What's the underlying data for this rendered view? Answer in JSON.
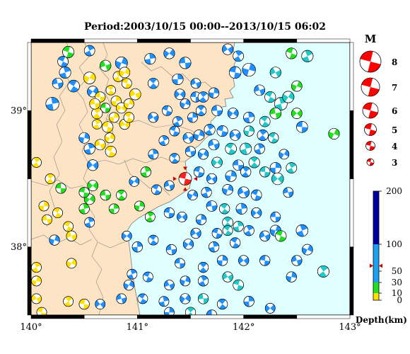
{
  "title": "Period:2003/10/15 00:00--2013/10/15 06:02",
  "map": {
    "land_color": "#fce4c4",
    "sea_color": "#e0ffff",
    "lon_ticks": [
      {
        "value": 140,
        "label": "140°"
      },
      {
        "value": 141,
        "label": "141°"
      },
      {
        "value": 142,
        "label": "142°"
      },
      {
        "value": 143,
        "label": "143°"
      }
    ],
    "lat_ticks": [
      {
        "value": 39,
        "label": "39°"
      },
      {
        "value": 38,
        "label": "38°"
      }
    ],
    "lon_range": [
      140,
      143
    ],
    "lat_range": [
      37.5,
      39.5
    ],
    "highlight_event": {
      "lon": 141.45,
      "lat": 38.5,
      "magnitude": 4.5,
      "depth_km": 60,
      "color": "#ff2020"
    }
  },
  "magnitude_legend": {
    "title": "M",
    "items": [
      {
        "label": "8",
        "m": 8
      },
      {
        "label": "7",
        "m": 7
      },
      {
        "label": "6",
        "m": 6
      },
      {
        "label": "5",
        "m": 5
      },
      {
        "label": "4",
        "m": 4
      },
      {
        "label": "3",
        "m": 3
      }
    ],
    "color": "#ff0000"
  },
  "depth_legend": {
    "title": "Depth(km)",
    "ticks": [
      {
        "label": "200",
        "value": 200
      },
      {
        "label": "100",
        "value": 100
      },
      {
        "label": "50",
        "value": 50
      },
      {
        "label": "30",
        "value": 30
      },
      {
        "label": "10",
        "value": 10
      },
      {
        "label": "0",
        "value": 0
      }
    ],
    "bands": [
      {
        "from": 0,
        "to": 10,
        "color": "#ffe000"
      },
      {
        "from": 10,
        "to": 30,
        "color": "#20e020"
      },
      {
        "from": 30,
        "to": 100,
        "color": "#1ea0f0"
      },
      {
        "from": 100,
        "to": 200,
        "color": "#0000a0"
      }
    ],
    "marker_depth": 60
  },
  "depth_colors": {
    "yellow": "#ffe000",
    "green": "#20e020",
    "cyan": "#20c8c8",
    "blue": "#1e90ff",
    "navy": "#0000b0"
  },
  "events": [
    {
      "lon": 140.35,
      "lat": 39.43,
      "m": 3.8,
      "c": "green"
    },
    {
      "lon": 140.55,
      "lat": 39.44,
      "m": 3.5,
      "c": "blue"
    },
    {
      "lon": 140.85,
      "lat": 39.35,
      "m": 4.0,
      "c": "blue"
    },
    {
      "lon": 140.7,
      "lat": 39.33,
      "m": 3.6,
      "c": "green"
    },
    {
      "lon": 140.3,
      "lat": 39.36,
      "m": 3.5,
      "c": "blue"
    },
    {
      "lon": 140.32,
      "lat": 39.28,
      "m": 3.8,
      "c": "blue"
    },
    {
      "lon": 140.55,
      "lat": 39.24,
      "m": 3.9,
      "c": "yellow"
    },
    {
      "lon": 140.25,
      "lat": 39.2,
      "m": 3.5,
      "c": "blue"
    },
    {
      "lon": 140.4,
      "lat": 39.18,
      "m": 3.9,
      "c": "blue"
    },
    {
      "lon": 140.2,
      "lat": 39.05,
      "m": 4.3,
      "c": "blue"
    },
    {
      "lon": 140.58,
      "lat": 39.14,
      "m": 3.6,
      "c": "blue"
    },
    {
      "lon": 140.65,
      "lat": 39.1,
      "m": 3.4,
      "c": "yellow"
    },
    {
      "lon": 140.75,
      "lat": 39.15,
      "m": 3.2,
      "c": "yellow"
    },
    {
      "lon": 140.8,
      "lat": 39.07,
      "m": 3.4,
      "c": "yellow"
    },
    {
      "lon": 140.85,
      "lat": 39.02,
      "m": 3.5,
      "c": "yellow"
    },
    {
      "lon": 140.7,
      "lat": 39.02,
      "m": 3.2,
      "c": "green"
    },
    {
      "lon": 140.62,
      "lat": 38.98,
      "m": 3.6,
      "c": "yellow"
    },
    {
      "lon": 140.78,
      "lat": 38.95,
      "m": 3.3,
      "c": "yellow"
    },
    {
      "lon": 140.88,
      "lat": 38.9,
      "m": 3.4,
      "c": "yellow"
    },
    {
      "lon": 140.72,
      "lat": 38.88,
      "m": 3.6,
      "c": "yellow"
    },
    {
      "lon": 140.62,
      "lat": 38.9,
      "m": 3.2,
      "c": "yellow"
    },
    {
      "lon": 140.92,
      "lat": 39.05,
      "m": 3.3,
      "c": "yellow"
    },
    {
      "lon": 140.98,
      "lat": 39.12,
      "m": 3.7,
      "c": "yellow"
    },
    {
      "lon": 140.9,
      "lat": 39.2,
      "m": 3.3,
      "c": "yellow"
    },
    {
      "lon": 140.82,
      "lat": 39.25,
      "m": 3.4,
      "c": "yellow"
    },
    {
      "lon": 140.74,
      "lat": 38.8,
      "m": 3.3,
      "c": "yellow"
    },
    {
      "lon": 140.65,
      "lat": 38.75,
      "m": 3.5,
      "c": "yellow"
    },
    {
      "lon": 140.75,
      "lat": 38.7,
      "m": 3.6,
      "c": "yellow"
    },
    {
      "lon": 140.55,
      "lat": 38.72,
      "m": 3.6,
      "c": "blue"
    },
    {
      "lon": 140.88,
      "lat": 39.28,
      "m": 3.5,
      "c": "yellow"
    },
    {
      "lon": 140.6,
      "lat": 39.05,
      "m": 3.5,
      "c": "yellow"
    },
    {
      "lon": 140.92,
      "lat": 38.95,
      "m": 3.4,
      "c": "yellow"
    },
    {
      "lon": 141.12,
      "lat": 39.38,
      "m": 3.6,
      "c": "blue"
    },
    {
      "lon": 141.3,
      "lat": 39.42,
      "m": 3.6,
      "c": "blue"
    },
    {
      "lon": 141.45,
      "lat": 39.35,
      "m": 3.8,
      "c": "blue"
    },
    {
      "lon": 141.15,
      "lat": 39.2,
      "m": 3.5,
      "c": "blue"
    },
    {
      "lon": 141.38,
      "lat": 39.23,
      "m": 3.6,
      "c": "blue"
    },
    {
      "lon": 141.4,
      "lat": 39.12,
      "m": 3.5,
      "c": "blue"
    },
    {
      "lon": 141.55,
      "lat": 39.1,
      "m": 3.4,
      "c": "blue"
    },
    {
      "lon": 141.62,
      "lat": 39.1,
      "m": 3.5,
      "c": "blue"
    },
    {
      "lon": 141.72,
      "lat": 39.13,
      "m": 3.4,
      "c": "blue"
    },
    {
      "lon": 141.85,
      "lat": 39.45,
      "m": 3.6,
      "c": "blue"
    },
    {
      "lon": 141.92,
      "lat": 39.28,
      "m": 3.9,
      "c": "blue"
    },
    {
      "lon": 141.95,
      "lat": 39.4,
      "m": 3.5,
      "c": "blue"
    },
    {
      "lon": 142.05,
      "lat": 39.3,
      "m": 4.3,
      "c": "blue"
    },
    {
      "lon": 142.3,
      "lat": 39.28,
      "m": 3.6,
      "c": "cyan"
    },
    {
      "lon": 142.45,
      "lat": 39.42,
      "m": 3.6,
      "c": "green"
    },
    {
      "lon": 142.6,
      "lat": 39.4,
      "m": 3.8,
      "c": "cyan"
    },
    {
      "lon": 142.5,
      "lat": 39.18,
      "m": 3.5,
      "c": "green"
    },
    {
      "lon": 142.15,
      "lat": 39.15,
      "m": 3.5,
      "c": "blue"
    },
    {
      "lon": 142.25,
      "lat": 39.1,
      "m": 3.6,
      "c": "cyan"
    },
    {
      "lon": 142.35,
      "lat": 39.05,
      "m": 4.2,
      "c": "cyan"
    },
    {
      "lon": 142.42,
      "lat": 39.1,
      "m": 3.8,
      "c": "cyan"
    },
    {
      "lon": 142.3,
      "lat": 38.98,
      "m": 3.7,
      "c": "green"
    },
    {
      "lon": 142.2,
      "lat": 38.92,
      "m": 3.5,
      "c": "cyan"
    },
    {
      "lon": 142.05,
      "lat": 38.95,
      "m": 3.6,
      "c": "blue"
    },
    {
      "lon": 141.9,
      "lat": 38.98,
      "m": 3.5,
      "c": "blue"
    },
    {
      "lon": 141.75,
      "lat": 39.0,
      "m": 3.5,
      "c": "blue"
    },
    {
      "lon": 141.6,
      "lat": 39.0,
      "m": 3.4,
      "c": "blue"
    },
    {
      "lon": 141.52,
      "lat": 38.95,
      "m": 3.3,
      "c": "blue"
    },
    {
      "lon": 142.5,
      "lat": 38.98,
      "m": 3.5,
      "c": "green"
    },
    {
      "lon": 142.55,
      "lat": 38.88,
      "m": 3.7,
      "c": "blue"
    },
    {
      "lon": 142.18,
      "lat": 38.82,
      "m": 3.6,
      "c": "blue"
    },
    {
      "lon": 142.05,
      "lat": 38.85,
      "m": 3.4,
      "c": "cyan"
    },
    {
      "lon": 141.92,
      "lat": 38.82,
      "m": 3.5,
      "c": "blue"
    },
    {
      "lon": 141.8,
      "lat": 38.85,
      "m": 3.6,
      "c": "blue"
    },
    {
      "lon": 141.68,
      "lat": 38.86,
      "m": 3.6,
      "c": "blue"
    },
    {
      "lon": 141.58,
      "lat": 38.82,
      "m": 3.5,
      "c": "blue"
    },
    {
      "lon": 141.48,
      "lat": 38.8,
      "m": 3.5,
      "c": "blue"
    },
    {
      "lon": 141.35,
      "lat": 38.85,
      "m": 3.3,
      "c": "blue"
    },
    {
      "lon": 141.25,
      "lat": 38.78,
      "m": 3.3,
      "c": "blue"
    },
    {
      "lon": 142.85,
      "lat": 38.83,
      "m": 3.6,
      "c": "green"
    },
    {
      "lon": 141.72,
      "lat": 38.75,
      "m": 3.5,
      "c": "blue"
    },
    {
      "lon": 141.88,
      "lat": 38.72,
      "m": 3.7,
      "c": "cyan"
    },
    {
      "lon": 142.02,
      "lat": 38.72,
      "m": 3.8,
      "c": "cyan"
    },
    {
      "lon": 141.62,
      "lat": 38.68,
      "m": 3.4,
      "c": "blue"
    },
    {
      "lon": 141.5,
      "lat": 38.7,
      "m": 3.4,
      "c": "blue"
    },
    {
      "lon": 141.35,
      "lat": 38.65,
      "m": 3.3,
      "c": "blue"
    },
    {
      "lon": 141.15,
      "lat": 38.68,
      "m": 3.3,
      "c": "blue"
    },
    {
      "lon": 141.75,
      "lat": 38.62,
      "m": 3.5,
      "c": "cyan"
    },
    {
      "lon": 141.95,
      "lat": 38.6,
      "m": 3.5,
      "c": "blue"
    },
    {
      "lon": 142.1,
      "lat": 38.62,
      "m": 3.6,
      "c": "cyan"
    },
    {
      "lon": 142.3,
      "lat": 38.58,
      "m": 3.6,
      "c": "blue"
    },
    {
      "lon": 142.32,
      "lat": 38.5,
      "m": 3.9,
      "c": "cyan"
    },
    {
      "lon": 142.2,
      "lat": 38.55,
      "m": 3.4,
      "c": "cyan"
    },
    {
      "lon": 142.02,
      "lat": 38.55,
      "m": 3.4,
      "c": "blue"
    },
    {
      "lon": 141.88,
      "lat": 38.52,
      "m": 3.6,
      "c": "blue"
    },
    {
      "lon": 141.7,
      "lat": 38.5,
      "m": 3.4,
      "c": "blue"
    },
    {
      "lon": 141.58,
      "lat": 38.55,
      "m": 3.4,
      "c": "blue"
    },
    {
      "lon": 142.45,
      "lat": 38.58,
      "m": 3.5,
      "c": "cyan"
    },
    {
      "lon": 141.85,
      "lat": 38.42,
      "m": 3.5,
      "c": "blue"
    },
    {
      "lon": 142.0,
      "lat": 38.4,
      "m": 3.7,
      "c": "blue"
    },
    {
      "lon": 142.12,
      "lat": 38.38,
      "m": 3.5,
      "c": "blue"
    },
    {
      "lon": 141.65,
      "lat": 38.4,
      "m": 3.4,
      "c": "blue"
    },
    {
      "lon": 141.52,
      "lat": 38.38,
      "m": 3.3,
      "c": "blue"
    },
    {
      "lon": 141.3,
      "lat": 38.45,
      "m": 3.3,
      "c": "blue"
    },
    {
      "lon": 141.18,
      "lat": 38.42,
      "m": 3.3,
      "c": "blue"
    },
    {
      "lon": 141.08,
      "lat": 38.55,
      "m": 3.4,
      "c": "green"
    },
    {
      "lon": 140.97,
      "lat": 38.48,
      "m": 3.3,
      "c": "blue"
    },
    {
      "lon": 141.7,
      "lat": 38.3,
      "m": 3.5,
      "c": "blue"
    },
    {
      "lon": 141.82,
      "lat": 38.28,
      "m": 3.4,
      "c": "cyan"
    },
    {
      "lon": 141.98,
      "lat": 38.28,
      "m": 3.6,
      "c": "blue"
    },
    {
      "lon": 142.12,
      "lat": 38.25,
      "m": 3.4,
      "c": "blue"
    },
    {
      "lon": 142.3,
      "lat": 38.22,
      "m": 3.3,
      "c": "blue"
    },
    {
      "lon": 141.85,
      "lat": 38.18,
      "m": 3.5,
      "c": "cyan"
    },
    {
      "lon": 141.6,
      "lat": 38.2,
      "m": 3.4,
      "c": "blue"
    },
    {
      "lon": 141.42,
      "lat": 38.22,
      "m": 3.3,
      "c": "blue"
    },
    {
      "lon": 141.3,
      "lat": 38.25,
      "m": 3.4,
      "c": "blue"
    },
    {
      "lon": 141.12,
      "lat": 38.22,
      "m": 3.3,
      "c": "green"
    },
    {
      "lon": 141.02,
      "lat": 38.3,
      "m": 3.3,
      "c": "green"
    },
    {
      "lon": 141.55,
      "lat": 38.1,
      "m": 3.4,
      "c": "blue"
    },
    {
      "lon": 141.75,
      "lat": 38.1,
      "m": 3.3,
      "c": "blue"
    },
    {
      "lon": 142.05,
      "lat": 38.12,
      "m": 3.4,
      "c": "blue"
    },
    {
      "lon": 142.3,
      "lat": 38.12,
      "m": 3.6,
      "c": "blue"
    },
    {
      "lon": 142.2,
      "lat": 38.08,
      "m": 3.4,
      "c": "blue"
    },
    {
      "lon": 142.35,
      "lat": 38.08,
      "m": 3.6,
      "c": "green"
    },
    {
      "lon": 142.55,
      "lat": 38.12,
      "m": 3.9,
      "c": "blue"
    },
    {
      "lon": 142.6,
      "lat": 37.98,
      "m": 3.5,
      "c": "blue"
    },
    {
      "lon": 142.5,
      "lat": 37.9,
      "m": 3.4,
      "c": "blue"
    },
    {
      "lon": 141.92,
      "lat": 38.03,
      "m": 3.4,
      "c": "blue"
    },
    {
      "lon": 141.72,
      "lat": 38.0,
      "m": 3.4,
      "c": "blue"
    },
    {
      "lon": 141.48,
      "lat": 38.02,
      "m": 3.4,
      "c": "blue"
    },
    {
      "lon": 141.32,
      "lat": 37.98,
      "m": 3.4,
      "c": "blue"
    },
    {
      "lon": 141.15,
      "lat": 38.05,
      "m": 3.3,
      "c": "blue"
    },
    {
      "lon": 141.0,
      "lat": 38.0,
      "m": 3.4,
      "c": "blue"
    },
    {
      "lon": 140.9,
      "lat": 38.08,
      "m": 3.3,
      "c": "blue"
    },
    {
      "lon": 141.4,
      "lat": 37.88,
      "m": 3.3,
      "c": "blue"
    },
    {
      "lon": 141.62,
      "lat": 37.85,
      "m": 3.4,
      "c": "blue"
    },
    {
      "lon": 141.8,
      "lat": 37.9,
      "m": 3.4,
      "c": "blue"
    },
    {
      "lon": 142.0,
      "lat": 37.9,
      "m": 3.4,
      "c": "blue"
    },
    {
      "lon": 142.2,
      "lat": 37.9,
      "m": 3.4,
      "c": "blue"
    },
    {
      "lon": 142.75,
      "lat": 37.82,
      "m": 3.8,
      "c": "cyan"
    },
    {
      "lon": 142.45,
      "lat": 37.78,
      "m": 3.4,
      "c": "blue"
    },
    {
      "lon": 141.85,
      "lat": 37.78,
      "m": 3.4,
      "c": "cyan"
    },
    {
      "lon": 141.95,
      "lat": 37.72,
      "m": 3.5,
      "c": "cyan"
    },
    {
      "lon": 141.62,
      "lat": 37.75,
      "m": 3.4,
      "c": "blue"
    },
    {
      "lon": 141.45,
      "lat": 37.75,
      "m": 3.3,
      "c": "blue"
    },
    {
      "lon": 141.3,
      "lat": 37.72,
      "m": 3.3,
      "c": "blue"
    },
    {
      "lon": 141.1,
      "lat": 37.78,
      "m": 3.3,
      "c": "blue"
    },
    {
      "lon": 140.95,
      "lat": 37.8,
      "m": 3.3,
      "c": "blue"
    },
    {
      "lon": 140.92,
      "lat": 37.72,
      "m": 3.4,
      "c": "blue"
    },
    {
      "lon": 140.85,
      "lat": 37.62,
      "m": 3.3,
      "c": "blue"
    },
    {
      "lon": 141.05,
      "lat": 37.62,
      "m": 3.3,
      "c": "blue"
    },
    {
      "lon": 141.25,
      "lat": 37.6,
      "m": 3.3,
      "c": "blue"
    },
    {
      "lon": 141.45,
      "lat": 37.62,
      "m": 3.4,
      "c": "blue"
    },
    {
      "lon": 141.62,
      "lat": 37.62,
      "m": 3.4,
      "c": "cyan"
    },
    {
      "lon": 141.8,
      "lat": 37.58,
      "m": 3.4,
      "c": "blue"
    },
    {
      "lon": 142.05,
      "lat": 37.6,
      "m": 3.4,
      "c": "blue"
    },
    {
      "lon": 142.25,
      "lat": 37.55,
      "m": 3.3,
      "c": "blue"
    },
    {
      "lon": 141.7,
      "lat": 37.5,
      "m": 3.4,
      "c": "blue"
    },
    {
      "lon": 141.5,
      "lat": 37.52,
      "m": 3.4,
      "c": "cyan"
    },
    {
      "lon": 141.3,
      "lat": 37.52,
      "m": 3.3,
      "c": "blue"
    },
    {
      "lon": 140.65,
      "lat": 37.58,
      "m": 3.3,
      "c": "blue"
    },
    {
      "lon": 140.5,
      "lat": 37.58,
      "m": 3.4,
      "c": "yellow"
    },
    {
      "lon": 140.35,
      "lat": 37.6,
      "m": 3.3,
      "c": "yellow"
    },
    {
      "lon": 140.05,
      "lat": 37.75,
      "m": 3.3,
      "c": "yellow"
    },
    {
      "lon": 140.05,
      "lat": 37.62,
      "m": 3.3,
      "c": "yellow"
    },
    {
      "lon": 140.1,
      "lat": 37.52,
      "m": 3.3,
      "c": "yellow"
    },
    {
      "lon": 140.05,
      "lat": 37.85,
      "m": 3.3,
      "c": "yellow"
    },
    {
      "lon": 140.22,
      "lat": 38.05,
      "m": 3.4,
      "c": "blue"
    },
    {
      "lon": 140.38,
      "lat": 38.08,
      "m": 3.4,
      "c": "yellow"
    },
    {
      "lon": 140.35,
      "lat": 38.15,
      "m": 3.3,
      "c": "yellow"
    },
    {
      "lon": 140.55,
      "lat": 38.18,
      "m": 3.3,
      "c": "blue"
    },
    {
      "lon": 140.38,
      "lat": 37.88,
      "m": 3.3,
      "c": "yellow"
    },
    {
      "lon": 140.15,
      "lat": 38.2,
      "m": 3.3,
      "c": "yellow"
    },
    {
      "lon": 140.25,
      "lat": 38.25,
      "m": 3.3,
      "c": "yellow"
    },
    {
      "lon": 140.5,
      "lat": 38.28,
      "m": 3.4,
      "c": "green"
    },
    {
      "lon": 140.55,
      "lat": 38.35,
      "m": 3.5,
      "c": "green"
    },
    {
      "lon": 140.7,
      "lat": 38.38,
      "m": 3.4,
      "c": "green"
    },
    {
      "lon": 140.85,
      "lat": 38.38,
      "m": 3.4,
      "c": "green"
    },
    {
      "lon": 140.78,
      "lat": 38.28,
      "m": 3.3,
      "c": "green"
    },
    {
      "lon": 140.58,
      "lat": 38.45,
      "m": 3.5,
      "c": "green"
    },
    {
      "lon": 140.28,
      "lat": 38.43,
      "m": 3.4,
      "c": "green"
    },
    {
      "lon": 140.18,
      "lat": 38.5,
      "m": 3.3,
      "c": "yellow"
    },
    {
      "lon": 140.12,
      "lat": 38.3,
      "m": 3.3,
      "c": "yellow"
    },
    {
      "lon": 140.58,
      "lat": 38.6,
      "m": 3.6,
      "c": "blue"
    },
    {
      "lon": 140.5,
      "lat": 38.4,
      "m": 3.4,
      "c": "green"
    },
    {
      "lon": 140.05,
      "lat": 38.62,
      "m": 3.3,
      "c": "yellow"
    },
    {
      "lon": 140.5,
      "lat": 38.8,
      "m": 3.5,
      "c": "blue"
    },
    {
      "lon": 141.15,
      "lat": 38.95,
      "m": 3.3,
      "c": "blue"
    },
    {
      "lon": 141.28,
      "lat": 39.0,
      "m": 3.3,
      "c": "blue"
    },
    {
      "lon": 141.38,
      "lat": 38.92,
      "m": 3.3,
      "c": "blue"
    },
    {
      "lon": 141.45,
      "lat": 39.05,
      "m": 3.3,
      "c": "blue"
    },
    {
      "lon": 141.55,
      "lat": 39.2,
      "m": 3.3,
      "c": "blue"
    },
    {
      "lon": 142.28,
      "lat": 38.8,
      "m": 3.4,
      "c": "cyan"
    },
    {
      "lon": 142.15,
      "lat": 38.72,
      "m": 3.4,
      "c": "blue"
    },
    {
      "lon": 142.38,
      "lat": 38.68,
      "m": 3.3,
      "c": "blue"
    },
    {
      "lon": 142.42,
      "lat": 38.4,
      "m": 3.3,
      "c": "blue"
    },
    {
      "lon": 141.85,
      "lat": 38.12,
      "m": 3.3,
      "c": "cyan"
    },
    {
      "lon": 141.95,
      "lat": 38.15,
      "m": 3.4,
      "c": "cyan"
    }
  ]
}
